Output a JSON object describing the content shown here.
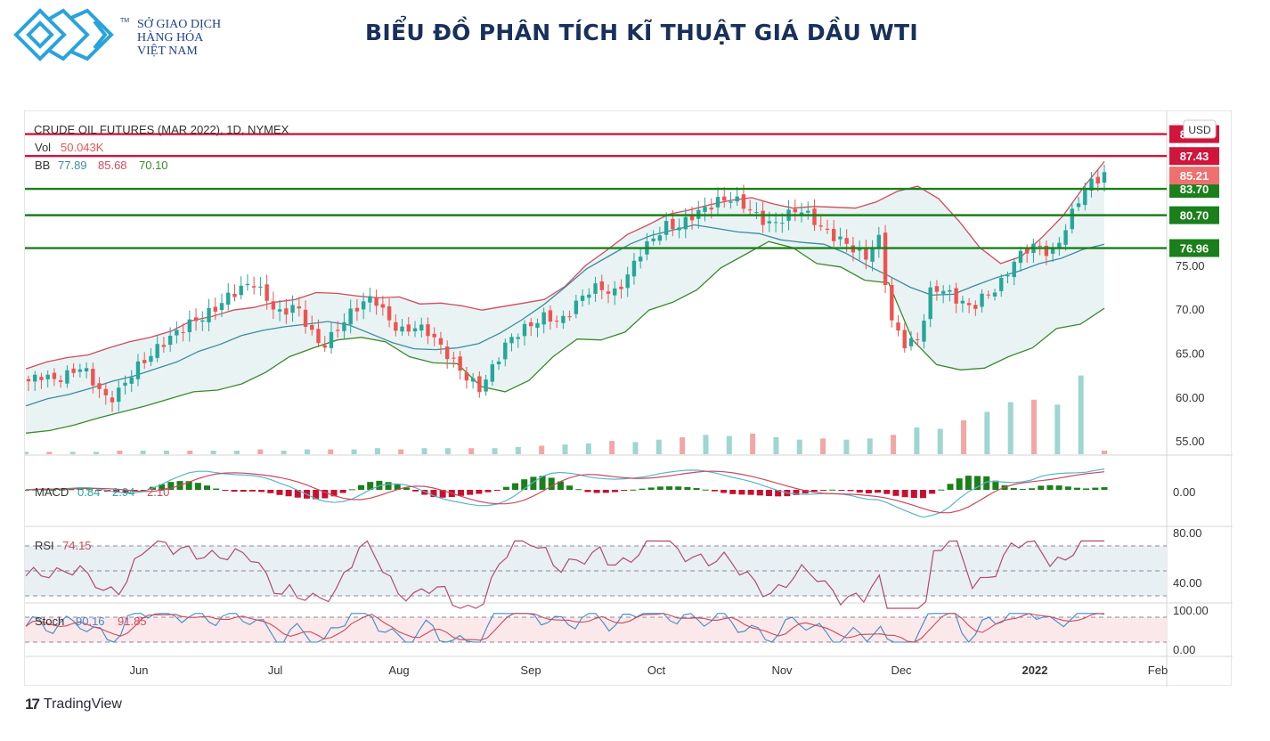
{
  "header": {
    "logo_lines": [
      "SỞ GIAO DỊCH",
      "HÀNG HÓA",
      "VIỆT NAM"
    ],
    "logo_tm": "TM",
    "title": "BIỂU ĐỒ PHÂN TÍCH KĨ THUẬT GIÁ DẦU WTI"
  },
  "footer": {
    "brand_mark": "17",
    "brand": "TradingView"
  },
  "colors": {
    "red_level": "#d1153b",
    "green_level": "#1b7f1b",
    "bb_upper": "#d14a5c",
    "bb_basis": "#3c8c9c",
    "bb_lower": "#3a8a2c",
    "candle_up": "#26a69a",
    "candle_down": "#ef5350"
  },
  "chart_data": {
    "type": "candlestick",
    "title": "CRUDE OIL FUTURES (MAR 2022), 1D, NYMEX",
    "currency": "USD",
    "legend": {
      "vol_label": "Vol",
      "vol_value": "50.043K",
      "bb_label": "BB",
      "bb_basis": "77.89",
      "bb_upper": "85.68",
      "bb_lower": "70.10"
    },
    "price_axis": {
      "ticks": [
        "75.00",
        "70.00",
        "65.00",
        "60.00",
        "55.00"
      ],
      "range": [
        53.5,
        91
      ]
    },
    "horizontal_levels": [
      {
        "value": "89.93",
        "kind": "resistance"
      },
      {
        "value": "87.43",
        "kind": "resistance"
      },
      {
        "value": "83.70",
        "kind": "support"
      },
      {
        "value": "80.70",
        "kind": "support"
      },
      {
        "value": "76.96",
        "kind": "support"
      }
    ],
    "last_price": "85.21",
    "x_axis_labels": [
      "Jun",
      "Jul",
      "Aug",
      "Sep",
      "Oct",
      "Nov",
      "Dec",
      "2022",
      "Feb"
    ],
    "close_path": [
      61.8,
      62.5,
      61.9,
      62.6,
      63.5,
      61.5,
      59.5,
      61.0,
      63.2,
      64.5,
      66.0,
      67.2,
      68.3,
      69.0,
      70.0,
      71.4,
      72.4,
      73.0,
      71.0,
      69.3,
      70.6,
      68.2,
      65.6,
      67.2,
      69.2,
      70.6,
      71.4,
      69.0,
      67.4,
      68.0,
      67.6,
      65.8,
      64.0,
      62.2,
      60.9,
      63.5,
      66.2,
      67.5,
      68.4,
      69.3,
      68.4,
      70.2,
      72.0,
      72.6,
      71.6,
      73.5,
      76.4,
      78.0,
      79.5,
      79.4,
      80.7,
      81.5,
      82.4,
      82.6,
      81.7,
      80.4,
      79.5,
      80.6,
      81.5,
      80.3,
      78.8,
      78.0,
      77.0,
      75.8,
      78.2,
      68.5,
      66.0,
      66.6,
      72.5,
      72.1,
      71.0,
      70.1,
      71.6,
      72.4,
      75.0,
      76.8,
      77.3,
      76.1,
      78.9,
      82.4,
      84.5,
      85.2
    ],
    "bb_upper": [
      63.2,
      64.0,
      64.5,
      64.8,
      65.6,
      66.3,
      66.8,
      67.5,
      68.7,
      69.2,
      69.9,
      70.2,
      70.8,
      71.1,
      71.9,
      71.8,
      71.5,
      71.3,
      71.4,
      70.6,
      70.7,
      70.4,
      69.9,
      70.3,
      70.7,
      71.1,
      72.6,
      75.0,
      76.7,
      78.5,
      79.6,
      80.8,
      81.3,
      81.9,
      82.4,
      82.7,
      82.0,
      81.5,
      81.7,
      81.6,
      81.5,
      82.2,
      83.4,
      84.0,
      82.6,
      80.0,
      77.0,
      75.2,
      76.0,
      78.2,
      80.6,
      83.9,
      86.8
    ],
    "bb_basis": [
      59.0,
      59.8,
      60.3,
      61.0,
      61.8,
      62.4,
      63.2,
      64.0,
      65.2,
      66.0,
      67.0,
      67.6,
      68.0,
      68.3,
      68.6,
      68.2,
      67.2,
      66.2,
      65.5,
      65.4,
      65.6,
      66.1,
      67.3,
      68.8,
      70.5,
      72.5,
      74.6,
      76.0,
      77.4,
      78.4,
      79.0,
      79.6,
      79.2,
      78.8,
      78.6,
      77.9,
      77.6,
      77.4,
      76.4,
      75.0,
      73.8,
      72.5,
      71.6,
      71.7,
      72.7,
      73.6,
      74.3,
      75.2,
      75.8,
      76.8,
      77.4
    ],
    "bb_lower": [
      55.9,
      56.2,
      56.8,
      57.6,
      58.3,
      59.0,
      59.8,
      60.6,
      60.8,
      61.5,
      62.8,
      64.6,
      65.6,
      66.5,
      66.8,
      66.3,
      64.6,
      63.9,
      63.8,
      61.2,
      60.6,
      61.9,
      64.6,
      66.6,
      66.5,
      67.4,
      69.9,
      70.8,
      72.2,
      74.7,
      76.2,
      77.7,
      77.0,
      75.2,
      74.8,
      73.3,
      73.0,
      66.5,
      63.7,
      63.1,
      63.3,
      64.6,
      65.6,
      67.8,
      68.3,
      70.1
    ],
    "volume": [
      2,
      2,
      2,
      2,
      3,
      3,
      3,
      3,
      3,
      3,
      4,
      3,
      4,
      4,
      4,
      5,
      4,
      5,
      5,
      5,
      5,
      6,
      7,
      8,
      9,
      11,
      10,
      12,
      14,
      16,
      15,
      17,
      14,
      12,
      13,
      12,
      13,
      16,
      22,
      21,
      28,
      35,
      43,
      45,
      41,
      65,
      3
    ],
    "macd": {
      "label": "MACD",
      "values": [
        "0.84",
        "2.94",
        "2.10"
      ],
      "zero_tick": "0.00"
    },
    "rsi": {
      "label": "RSI",
      "value": "74.15",
      "ticks": [
        "80.00",
        "40.00"
      ]
    },
    "stoch": {
      "label": "Stoch",
      "values": [
        "90.16",
        "91.85"
      ],
      "ticks": [
        "100.00",
        "0.00"
      ]
    }
  }
}
